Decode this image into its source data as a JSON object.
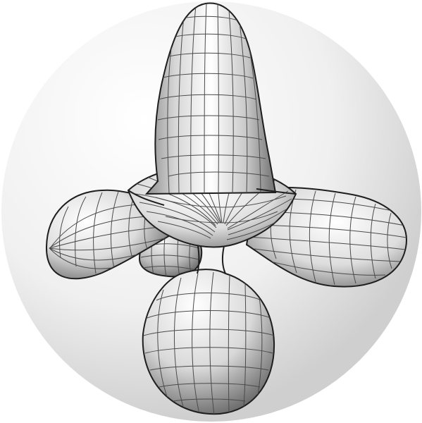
{
  "scene": {
    "subject": "gray-wireframe-surface",
    "background_color": "#ffffff",
    "sphere_light_color": "#ffffff",
    "sphere_dark_color": "#cfcfcf",
    "surface_light_color": "#ffffff",
    "surface_mid_color": "#d7d7d7",
    "surface_dark_color": "#777777",
    "mesh_line_color": "#4a4a4a",
    "outline_color": "#1e1e1e"
  }
}
